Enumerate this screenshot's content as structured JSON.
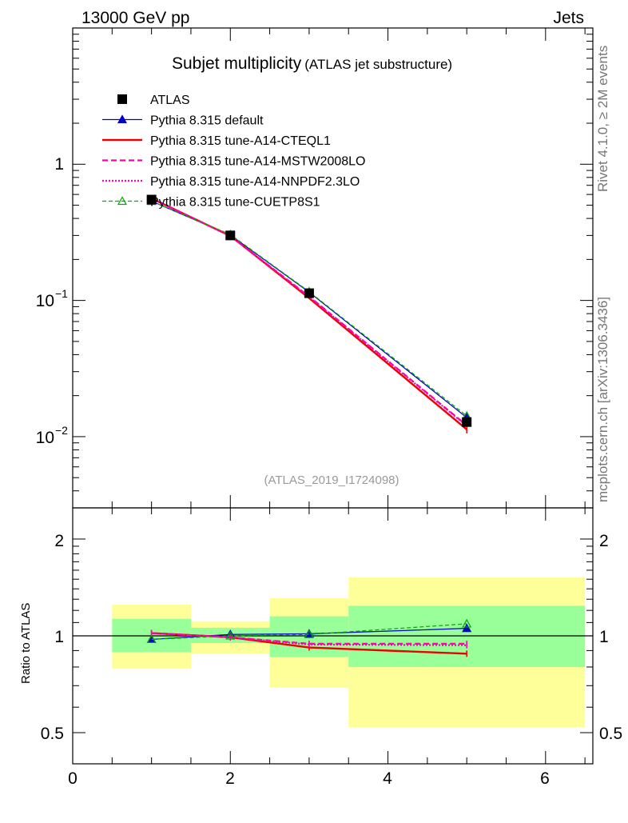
{
  "header": {
    "left": "13000 GeV pp",
    "right": "Jets",
    "title_main": "Subjet multiplicity",
    "title_sub": "(ATLAS jet substructure)",
    "analysis_id": "(ATLAS_2019_I1724098)",
    "side_top": "Rivet 4.1.0, ≥ 2M events",
    "side_bottom": "mcplots.cern.ch [arXiv:1306.3436]"
  },
  "chart_data": [
    {
      "type": "line",
      "panel": "main",
      "yscale": "log",
      "xlim": [
        0,
        6.6
      ],
      "ylim": [
        0.003,
        10
      ],
      "ytick_labels": [
        "1",
        "10",
        "10"
      ],
      "ytick_exponents": [
        "",
        "−1",
        "−2"
      ],
      "x": [
        1,
        2,
        3,
        4,
        5
      ],
      "series": [
        {
          "name": "ATLAS",
          "values": [
            0.55,
            0.3,
            0.113,
            null,
            0.0128
          ],
          "color": "#000000",
          "marker": "square",
          "style": "none"
        },
        {
          "name": "Pythia 8.315 default",
          "values": [
            0.535,
            0.302,
            0.115,
            null,
            0.0138
          ],
          "color": "#0000cc",
          "marker": "triangle",
          "style": "solid"
        },
        {
          "name": "Pythia 8.315 tune-A14-CTEQL1",
          "values": [
            0.56,
            0.298,
            0.104,
            null,
            0.0113
          ],
          "color": "#ee0000",
          "marker": "none",
          "style": "solid-thick"
        },
        {
          "name": "Pythia 8.315 tune-A14-MSTW2008LO",
          "values": [
            0.563,
            0.297,
            0.107,
            null,
            0.0121
          ],
          "color": "#ff00aa",
          "marker": "none",
          "style": "dashed"
        },
        {
          "name": "Pythia 8.315 tune-A14-NNPDF2.3LO",
          "values": [
            0.563,
            0.297,
            0.106,
            null,
            0.012
          ],
          "color": "#ff00aa",
          "marker": "none",
          "style": "dotted"
        },
        {
          "name": "Pythia 8.315 tune-CUETP8S1",
          "values": [
            0.535,
            0.305,
            0.116,
            null,
            0.0142
          ],
          "color": "#00aa00",
          "marker": "triangle-open",
          "style": "dashed-thin"
        }
      ]
    },
    {
      "type": "line",
      "panel": "ratio",
      "ylabel": "Ratio to ATLAS",
      "yscale": "log",
      "xlim": [
        0,
        6.6
      ],
      "ylim": [
        0.4,
        2.5
      ],
      "xticks": [
        "0",
        "2",
        "4",
        "6"
      ],
      "yticks": [
        "0.5",
        "1",
        "2"
      ],
      "bands": [
        {
          "x": [
            0.5,
            1.5
          ],
          "inner": [
            0.89,
            1.13
          ],
          "outer": [
            0.79,
            1.25
          ]
        },
        {
          "x": [
            1.5,
            2.5
          ],
          "inner": [
            0.95,
            1.06
          ],
          "outer": [
            0.88,
            1.11
          ]
        },
        {
          "x": [
            2.5,
            3.5
          ],
          "inner": [
            0.86,
            1.15
          ],
          "outer": [
            0.69,
            1.31
          ]
        },
        {
          "x": [
            3.5,
            6.5
          ],
          "inner": [
            0.8,
            1.24
          ],
          "outer": [
            0.52,
            1.52
          ]
        }
      ],
      "x": [
        1,
        2,
        3,
        5
      ],
      "series": [
        {
          "name": "Pythia 8.315 default",
          "values": [
            0.975,
            1.01,
            1.015,
            1.055
          ]
        },
        {
          "name": "Pythia 8.315 tune-A14-CTEQL1",
          "values": [
            1.02,
            0.99,
            0.92,
            0.88
          ]
        },
        {
          "name": "Pythia 8.315 tune-A14-MSTW2008LO",
          "values": [
            1.02,
            0.99,
            0.945,
            0.945
          ]
        },
        {
          "name": "Pythia 8.315 tune-A14-NNPDF2.3LO",
          "values": [
            1.02,
            0.99,
            0.94,
            0.935
          ]
        },
        {
          "name": "Pythia 8.315 tune-CUETP8S1",
          "values": [
            0.975,
            1.0,
            1.01,
            1.09
          ]
        }
      ]
    }
  ]
}
